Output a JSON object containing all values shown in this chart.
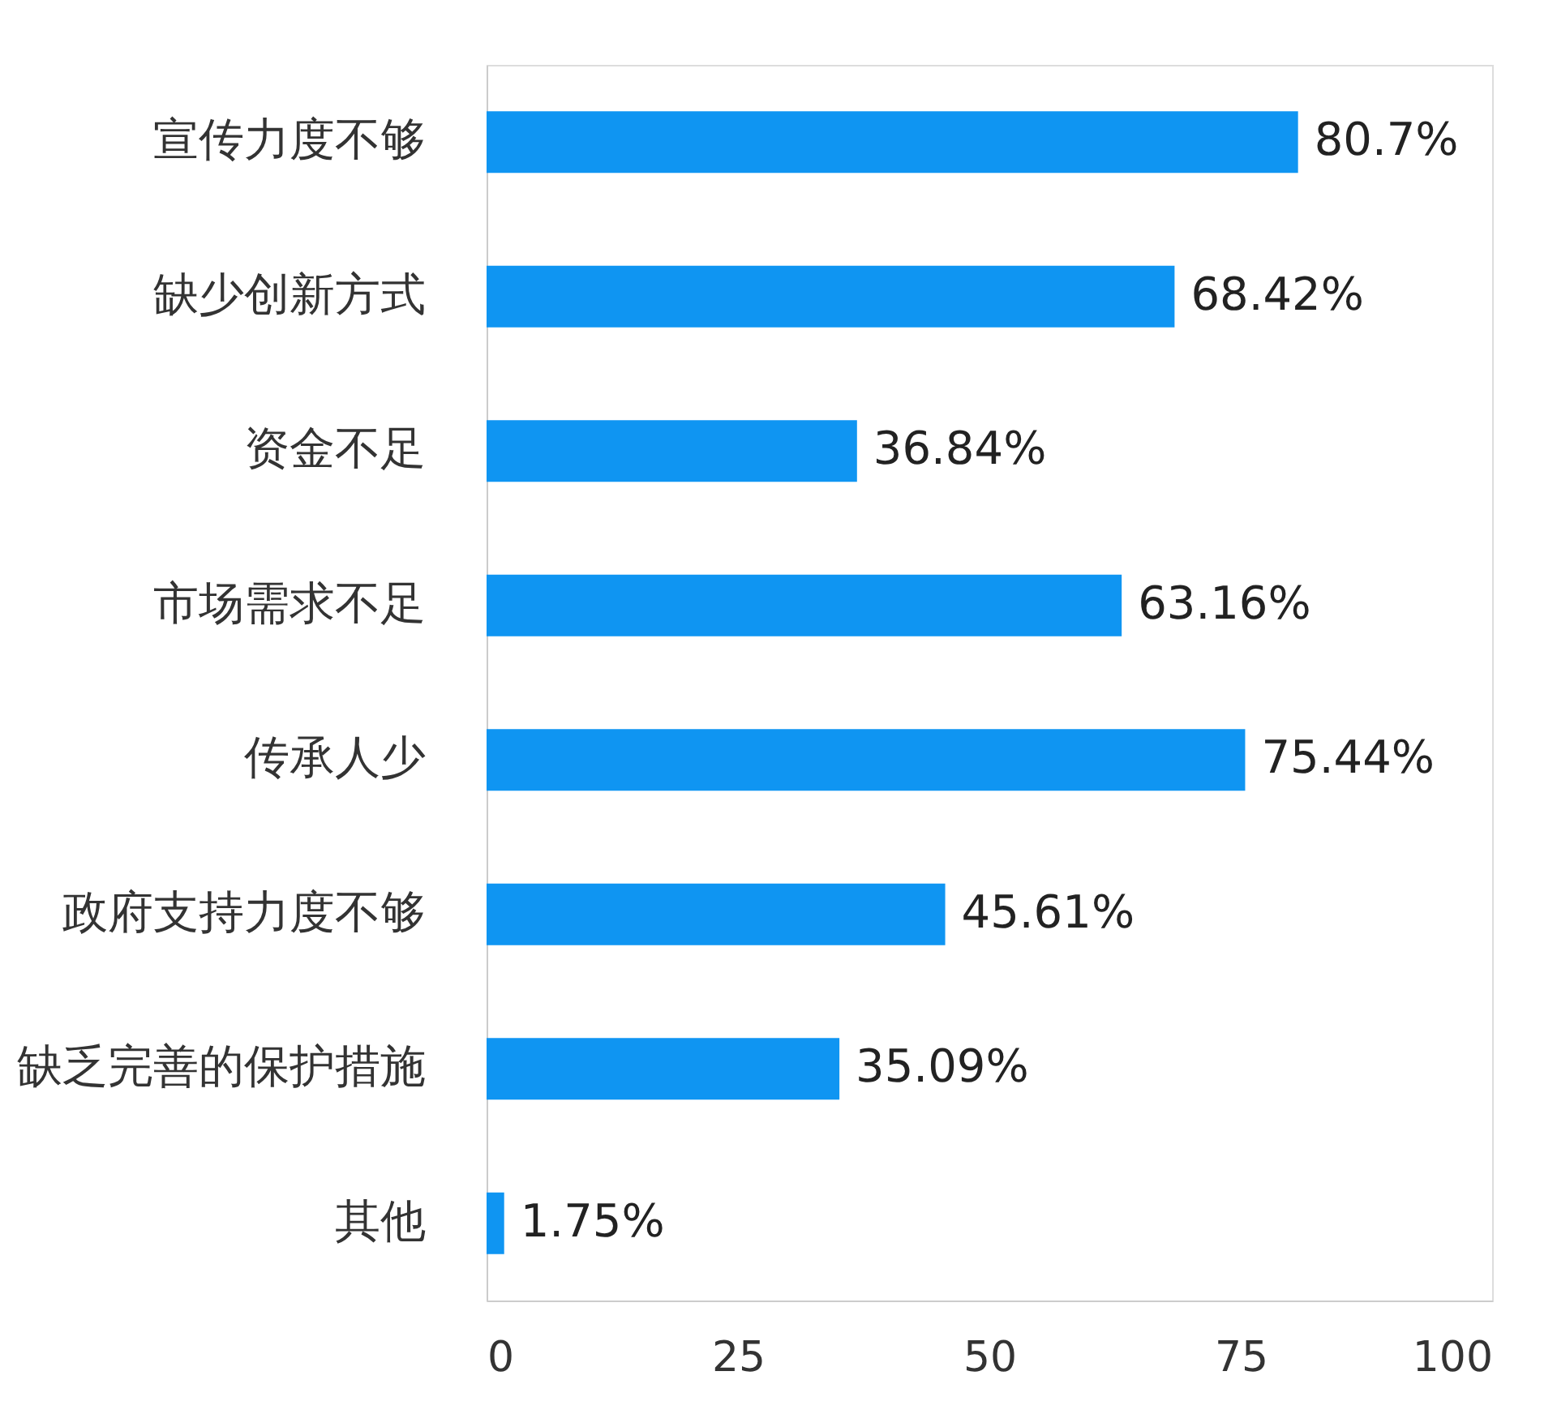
{
  "chart_data": {
    "type": "bar",
    "orientation": "horizontal",
    "categories": [
      "宣传力度不够",
      "缺少创新方式",
      "资金不足",
      "市场需求不足",
      "传承人少",
      "政府支持力度不够",
      "缺乏完善的保护措施",
      "其他"
    ],
    "values": [
      80.7,
      68.42,
      36.84,
      63.16,
      75.44,
      45.61,
      35.09,
      1.75
    ],
    "value_labels": [
      "80.7%",
      "68.42%",
      "36.84%",
      "63.16%",
      "75.44%",
      "45.61%",
      "35.09%",
      "1.75%"
    ],
    "color": "#0f95f2",
    "xlim": [
      0,
      100
    ],
    "xticks": [
      0,
      25,
      50,
      75,
      100
    ],
    "grid": false
  }
}
